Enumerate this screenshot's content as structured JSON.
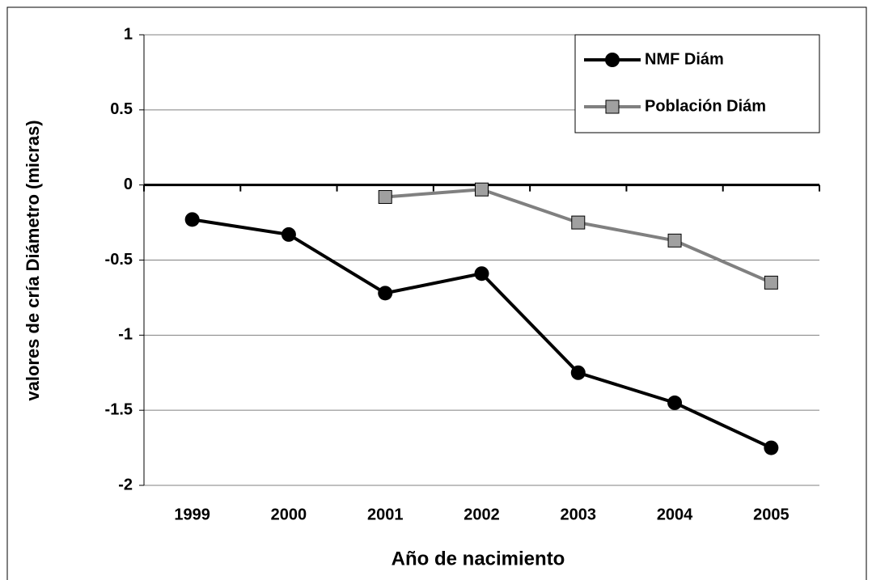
{
  "chart_data": {
    "type": "line",
    "x_label": "Año de nacimiento",
    "y_label": "valores de cría Diámetro (micras)",
    "categories": [
      "1999",
      "2000",
      "2001",
      "2002",
      "2003",
      "2004",
      "2005"
    ],
    "series": [
      {
        "name": "NMF Diám",
        "color": "#000000",
        "marker": "circle",
        "values": [
          -0.23,
          -0.33,
          -0.72,
          -0.59,
          -1.25,
          -1.45,
          -1.75
        ]
      },
      {
        "name": "Población Diám",
        "color": "#808080",
        "marker": "square",
        "values": [
          null,
          null,
          -0.08,
          -0.03,
          -0.25,
          -0.37,
          -0.65
        ]
      }
    ],
    "ylim": [
      -2,
      1
    ],
    "yticks": [
      -2,
      -1.5,
      -1,
      -0.5,
      0,
      0.5,
      1
    ],
    "grid": true,
    "legend": "top-right"
  }
}
